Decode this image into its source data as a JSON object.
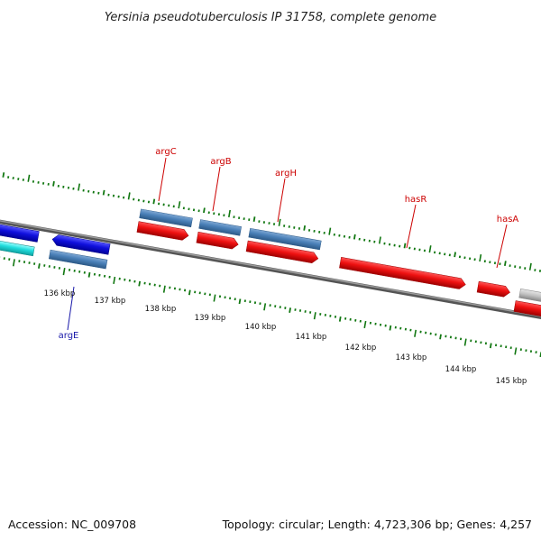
{
  "title": "Yersinia pseudotuberculosis IP 31758, complete genome",
  "footer": {
    "accession": "Accession: NC_009708",
    "summary": "Topology: circular; Length: 4,723,306 bp; Genes: 4,257"
  },
  "axis": {
    "ticks": [
      "136 kbp",
      "137 kbp",
      "138 kbp",
      "139 kbp",
      "140 kbp",
      "141 kbp",
      "142 kbp",
      "143 kbp",
      "144 kbp",
      "145 kbp"
    ]
  },
  "genes": [
    {
      "name": "argC",
      "color": "#cc0000"
    },
    {
      "name": "argB",
      "color": "#cc0000"
    },
    {
      "name": "argH",
      "color": "#cc0000"
    },
    {
      "name": "hasR",
      "color": "#cc0000"
    },
    {
      "name": "hasA",
      "color": "#cc0000"
    },
    {
      "name": "argE",
      "color": "#1a1aaa"
    }
  ],
  "colors": {
    "backbone": "#7a7a7a",
    "tick_marks": "#117711",
    "feature_red": "#ee1111",
    "feature_steelblue": "#4a80b8",
    "feature_blue": "#1010dd",
    "feature_cyan": "#22dddd",
    "feature_gray": "#bbbbbb"
  }
}
